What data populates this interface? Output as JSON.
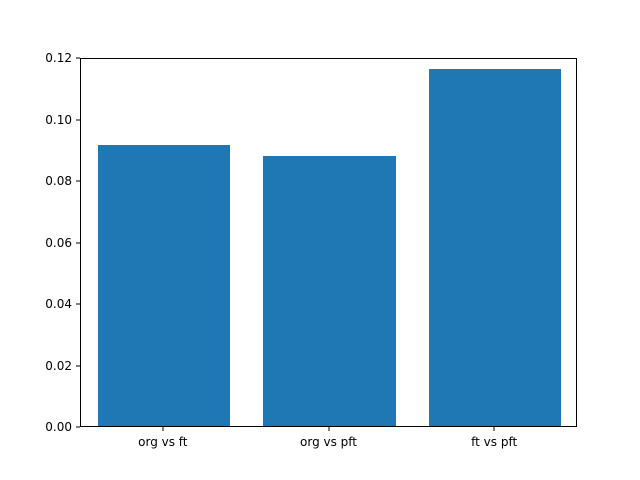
{
  "chart_data": {
    "type": "bar",
    "categories": [
      "org vs ft",
      "org vs pft",
      "ft vs pft"
    ],
    "values": [
      0.0915,
      0.0878,
      0.116
    ],
    "title": "",
    "xlabel": "",
    "ylabel": "",
    "ylim": [
      0,
      0.12
    ],
    "yticks": [
      0.0,
      0.02,
      0.04,
      0.06,
      0.08,
      0.1,
      0.12
    ],
    "ytick_format_decimals": 2,
    "bar_color": "#1f77b4",
    "bar_width_fraction": 0.8,
    "grid": false,
    "legend_position": "none"
  }
}
